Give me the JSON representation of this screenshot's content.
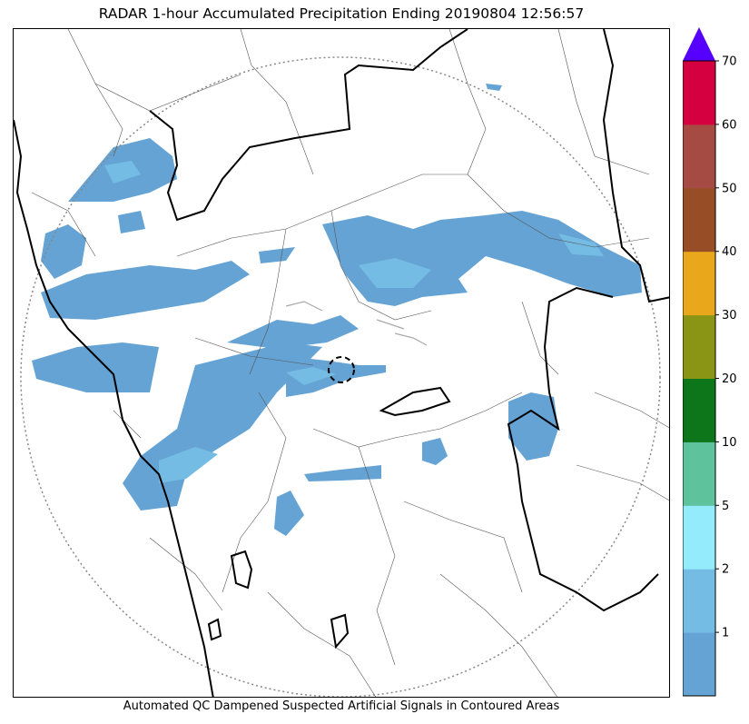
{
  "title": "RADAR 1-hour Accumulated Precipitation Ending 20190804 12:56:57",
  "footer": "Automated QC Dampened Suspected Artificial Signals in Contoured Areas",
  "colorbar": {
    "levels": [
      {
        "label": "",
        "color": "#64a3d4"
      },
      {
        "label": "1",
        "color": "#74bce3"
      },
      {
        "label": "2",
        "color": "#93ebfc"
      },
      {
        "label": "5",
        "color": "#5ec39d"
      },
      {
        "label": "10",
        "color": "#0d751a"
      },
      {
        "label": "20",
        "color": "#8a9515"
      },
      {
        "label": "30",
        "color": "#e9a81b"
      },
      {
        "label": "40",
        "color": "#974e26"
      },
      {
        "label": "50",
        "color": "#a64b43"
      },
      {
        "label": "60",
        "color": "#d5003f"
      },
      {
        "label": "70",
        "color": ""
      }
    ],
    "extend_color": "#5600ff"
  },
  "colors": {
    "light_rain": "#64a3d4",
    "moderate_rain": "#74bce3",
    "state_border": "#000000",
    "district_border": "#555555",
    "range_ring": "#888888"
  }
}
